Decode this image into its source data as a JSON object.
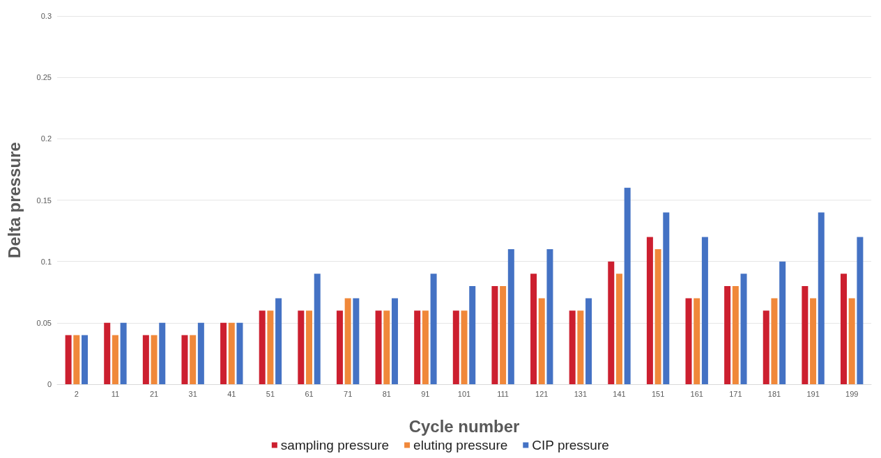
{
  "chart_data": {
    "type": "bar",
    "xlabel": "Cycle number",
    "ylabel": "Delta pressure",
    "categories": [
      "2",
      "11",
      "21",
      "31",
      "41",
      "51",
      "61",
      "71",
      "81",
      "91",
      "101",
      "111",
      "121",
      "131",
      "141",
      "151",
      "161",
      "171",
      "181",
      "191",
      "199"
    ],
    "series": [
      {
        "name": "sampling pressure",
        "color": "#cc1f2f",
        "values": [
          0.04,
          0.05,
          0.04,
          0.04,
          0.05,
          0.06,
          0.06,
          0.06,
          0.06,
          0.06,
          0.06,
          0.08,
          0.09,
          0.06,
          0.1,
          0.12,
          0.07,
          0.08,
          0.06,
          0.08,
          0.09
        ]
      },
      {
        "name": "eluting pressure",
        "color": "#f0883a",
        "values": [
          0.04,
          0.04,
          0.04,
          0.04,
          0.05,
          0.06,
          0.06,
          0.07,
          0.06,
          0.06,
          0.06,
          0.08,
          0.07,
          0.06,
          0.09,
          0.11,
          0.07,
          0.08,
          0.07,
          0.07,
          0.07
        ]
      },
      {
        "name": "CIP pressure",
        "color": "#4472c4",
        "values": [
          0.04,
          0.05,
          0.05,
          0.05,
          0.05,
          0.07,
          0.09,
          0.07,
          0.07,
          0.09,
          0.08,
          0.11,
          0.11,
          0.07,
          0.16,
          0.14,
          0.12,
          0.09,
          0.1,
          0.14,
          0.12
        ]
      }
    ],
    "ylim": [
      0,
      0.3
    ],
    "yticks": [
      0,
      0.05,
      0.1,
      0.15,
      0.2,
      0.25,
      0.3
    ],
    "grid": "y",
    "legend": "bottom"
  }
}
